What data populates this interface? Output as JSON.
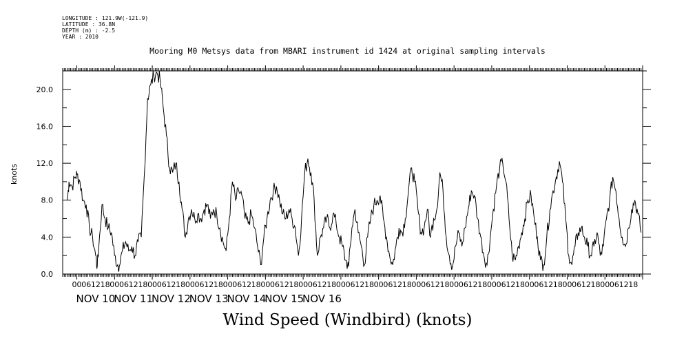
{
  "header": {
    "longitude": "LONGITUDE : 121.9W(-121.9)",
    "latitude": "LATITUDE : 36.8N",
    "depth": "DEPTH (m) : -2.5",
    "year": "YEAR : 2010"
  },
  "chart_data": {
    "type": "line",
    "title": "Mooring M0 Metsys data from MBARI instrument id 1424 at original sampling intervals",
    "bottom_title": "Wind Speed (Windbird) (knots)",
    "ylabel": "knots",
    "ylim": [
      0,
      22
    ],
    "yticks": [
      "0.0",
      "4.0",
      "8.0",
      "12.0",
      "16.0",
      "20.0"
    ],
    "xrange_hours": [
      -9,
      0
    ],
    "date_labels": [
      "NOV 10",
      "NOV 11",
      "NOV 12",
      "NOV 13",
      "NOV 14",
      "NOV 15",
      "NOV 16"
    ],
    "hour_labels": [
      "00",
      "06",
      "12",
      "18"
    ],
    "grid": false,
    "series": [
      {
        "points": [
          [
            -6,
            8
          ],
          [
            -5,
            10
          ],
          [
            -3,
            9.5
          ],
          [
            -1,
            10.5
          ],
          [
            0,
            10.8
          ],
          [
            2,
            10
          ],
          [
            4,
            8
          ],
          [
            6,
            7.5
          ],
          [
            8,
            5
          ],
          [
            10,
            4
          ],
          [
            12,
            2
          ],
          [
            13,
            0.8
          ],
          [
            14,
            3
          ],
          [
            16,
            7.5
          ],
          [
            18,
            6
          ],
          [
            20,
            5
          ],
          [
            22,
            4.5
          ],
          [
            24,
            2
          ],
          [
            26,
            1
          ],
          [
            27,
            0.8
          ],
          [
            29,
            2.5
          ],
          [
            31,
            3.5
          ],
          [
            33,
            2.5
          ],
          [
            35,
            3
          ],
          [
            37,
            2
          ],
          [
            39,
            3.5
          ],
          [
            41,
            4
          ],
          [
            43,
            11
          ],
          [
            45,
            19
          ],
          [
            47,
            20.5
          ],
          [
            49,
            21.5
          ],
          [
            51,
            21.8
          ],
          [
            53,
            21
          ],
          [
            55,
            18
          ],
          [
            57,
            15
          ],
          [
            59,
            11.5
          ],
          [
            61,
            11
          ],
          [
            63,
            12
          ],
          [
            65,
            10
          ],
          [
            67,
            7
          ],
          [
            69,
            4
          ],
          [
            71,
            6
          ],
          [
            73,
            7
          ],
          [
            75,
            6
          ],
          [
            77,
            6.5
          ],
          [
            79,
            6
          ],
          [
            81,
            7
          ],
          [
            83,
            7.5
          ],
          [
            85,
            6
          ],
          [
            87,
            7
          ],
          [
            89,
            6.5
          ],
          [
            91,
            5
          ],
          [
            93,
            3.5
          ],
          [
            95,
            2.5
          ],
          [
            97,
            6
          ],
          [
            99,
            10
          ],
          [
            101,
            8
          ],
          [
            103,
            9
          ],
          [
            105,
            8.5
          ],
          [
            107,
            6
          ],
          [
            109,
            5.5
          ],
          [
            111,
            6.5
          ],
          [
            113,
            5
          ],
          [
            115,
            3
          ],
          [
            117,
            1
          ],
          [
            119,
            4
          ],
          [
            121,
            6
          ],
          [
            123,
            8
          ],
          [
            125,
            9
          ],
          [
            127,
            9.5
          ],
          [
            129,
            8
          ],
          [
            131,
            6.5
          ],
          [
            133,
            6
          ],
          [
            135,
            7
          ],
          [
            137,
            6
          ],
          [
            139,
            5
          ],
          [
            141,
            2
          ],
          [
            143,
            6
          ],
          [
            145,
            11
          ],
          [
            147,
            12.5
          ],
          [
            149,
            11
          ],
          [
            151,
            8
          ],
          [
            153,
            2
          ],
          [
            155,
            4
          ],
          [
            157,
            5
          ],
          [
            159,
            6
          ],
          [
            161,
            5
          ],
          [
            163,
            6.5
          ],
          [
            165,
            5.5
          ],
          [
            167,
            4
          ],
          [
            169,
            3
          ],
          [
            171,
            1.5
          ],
          [
            173,
            0.8
          ],
          [
            175,
            5
          ],
          [
            177,
            7
          ],
          [
            179,
            4.5
          ],
          [
            181,
            3
          ],
          [
            183,
            1
          ],
          [
            185,
            4
          ],
          [
            187,
            6
          ],
          [
            189,
            7.5
          ],
          [
            191,
            8
          ],
          [
            193,
            8.5
          ],
          [
            195,
            6
          ],
          [
            197,
            4
          ],
          [
            199,
            2
          ],
          [
            201,
            1
          ],
          [
            203,
            3
          ],
          [
            205,
            5
          ],
          [
            207,
            4.5
          ],
          [
            209,
            6
          ],
          [
            211,
            9
          ],
          [
            213,
            11.5
          ],
          [
            215,
            10
          ],
          [
            217,
            7
          ],
          [
            219,
            4.5
          ],
          [
            221,
            5
          ],
          [
            223,
            7
          ],
          [
            225,
            4
          ],
          [
            227,
            6
          ],
          [
            229,
            7
          ],
          [
            231,
            11
          ],
          [
            233,
            9
          ],
          [
            235,
            4
          ],
          [
            237,
            2
          ],
          [
            239,
            0.8
          ],
          [
            241,
            3
          ],
          [
            243,
            4.5
          ],
          [
            245,
            3
          ],
          [
            247,
            5
          ],
          [
            249,
            7
          ],
          [
            251,
            9
          ],
          [
            253,
            8.5
          ],
          [
            255,
            6
          ],
          [
            257,
            4
          ],
          [
            259,
            2
          ],
          [
            261,
            1
          ],
          [
            263,
            4
          ],
          [
            265,
            7
          ],
          [
            267,
            9.5
          ],
          [
            269,
            11.5
          ],
          [
            271,
            12
          ],
          [
            273,
            10
          ],
          [
            275,
            6
          ],
          [
            277,
            2
          ],
          [
            279,
            1.5
          ],
          [
            281,
            3
          ],
          [
            283,
            4.5
          ],
          [
            285,
            6
          ],
          [
            287,
            8
          ],
          [
            289,
            8.5
          ],
          [
            291,
            6
          ],
          [
            293,
            4
          ],
          [
            295,
            1.5
          ],
          [
            297,
            1
          ],
          [
            299,
            4
          ],
          [
            301,
            7
          ],
          [
            303,
            9
          ],
          [
            305,
            10.5
          ],
          [
            307,
            12.2
          ],
          [
            309,
            10
          ],
          [
            311,
            6
          ],
          [
            313,
            2
          ],
          [
            315,
            1
          ],
          [
            317,
            3
          ],
          [
            319,
            4.5
          ],
          [
            321,
            5
          ],
          [
            323,
            4
          ],
          [
            325,
            3
          ],
          [
            327,
            2
          ],
          [
            329,
            3
          ],
          [
            331,
            4.5
          ],
          [
            333,
            2
          ],
          [
            335,
            3
          ],
          [
            337,
            6
          ],
          [
            339,
            8
          ],
          [
            341,
            10.5
          ],
          [
            343,
            9
          ],
          [
            345,
            6
          ],
          [
            347,
            4
          ],
          [
            349,
            3
          ],
          [
            351,
            5
          ],
          [
            353,
            7
          ],
          [
            355,
            8
          ],
          [
            357,
            6.5
          ],
          [
            359,
            4.5
          ]
        ]
      }
    ]
  }
}
